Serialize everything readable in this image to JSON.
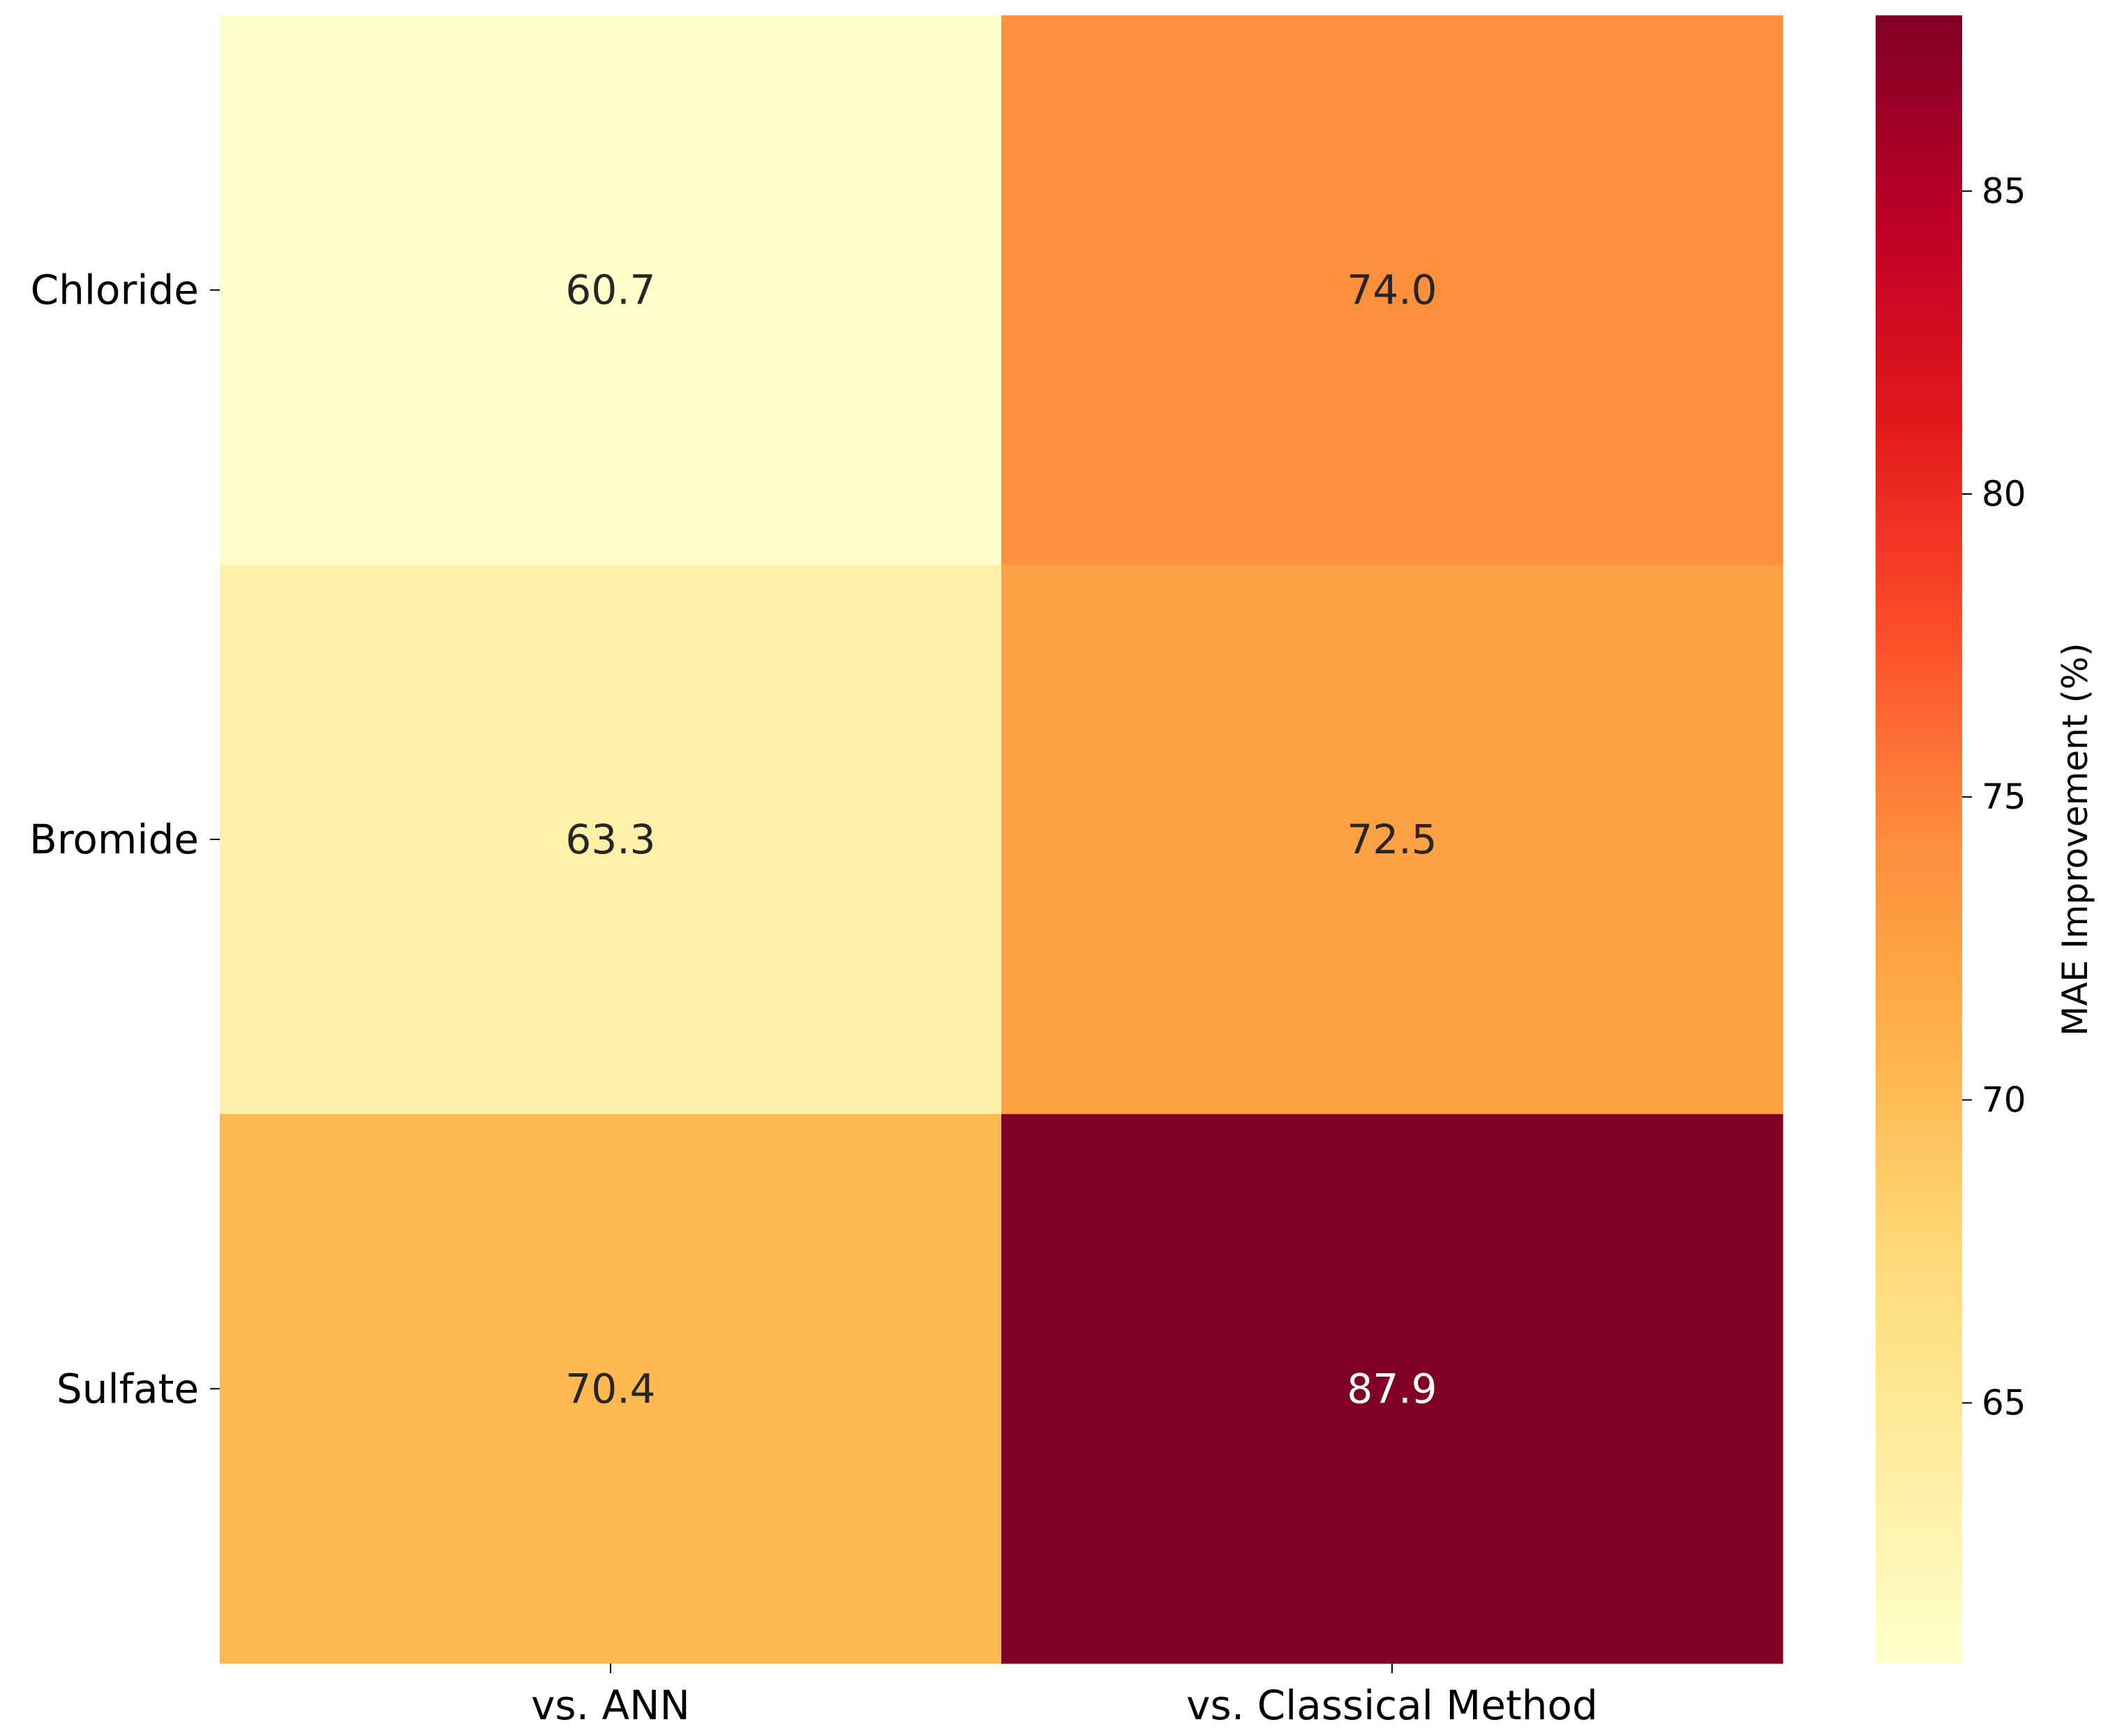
{
  "chart_data": {
    "type": "heatmap",
    "rows": [
      "Chloride",
      "Bromide",
      "Sulfate"
    ],
    "columns": [
      "vs. ANN",
      "vs. Classical Method"
    ],
    "values": [
      [
        60.7,
        74.0
      ],
      [
        63.3,
        72.5
      ],
      [
        70.4,
        87.9
      ]
    ],
    "cell_labels": [
      [
        "60.7",
        "74.0"
      ],
      [
        "63.3",
        "72.5"
      ],
      [
        "70.4",
        "87.9"
      ]
    ],
    "colormap": "YlOrRd",
    "colorbar": {
      "label": "MAE Improvement (%)",
      "range": [
        60.7,
        87.9
      ],
      "ticks": [
        "65",
        "70",
        "75",
        "80",
        "85"
      ]
    },
    "colors": {
      "annotation_dark": "#262626",
      "annotation_light": "#ffffff",
      "axis": "#000000"
    }
  }
}
